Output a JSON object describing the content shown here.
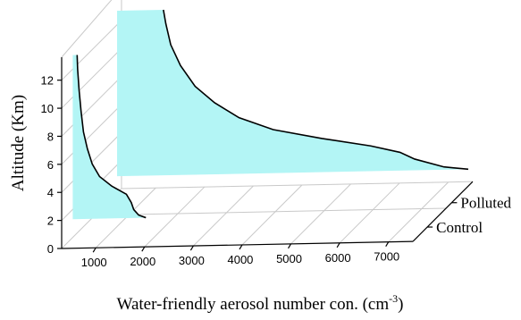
{
  "chart_data": {
    "type": "area",
    "title": "",
    "xlabel": "Water-friendly aerosol number con. (cm",
    "xlabel_exponent": "-3",
    "xlabel_suffix": ")",
    "ylabel": "Altitude (Km)",
    "zlabel": "",
    "xlim": [
      300,
      7500
    ],
    "ylim": [
      0,
      13
    ],
    "x_ticks": [
      1000,
      2000,
      3000,
      4000,
      5000,
      6000,
      7000
    ],
    "y_ticks": [
      0,
      2,
      4,
      6,
      8,
      10,
      12
    ],
    "grid": true,
    "fill_color": "#b3f5f5",
    "line_color": "#000000",
    "series": [
      {
        "name": "Control",
        "points": [
          [
            1800,
            1.3
          ],
          [
            1650,
            1.5
          ],
          [
            1550,
            1.9
          ],
          [
            1500,
            2.4
          ],
          [
            1400,
            3.0
          ],
          [
            1100,
            3.6
          ],
          [
            850,
            4.3
          ],
          [
            700,
            5.2
          ],
          [
            600,
            6.3
          ],
          [
            520,
            7.5
          ],
          [
            470,
            9.0
          ],
          [
            430,
            10.5
          ],
          [
            400,
            12.0
          ],
          [
            390,
            13.0
          ]
        ]
      },
      {
        "name": "Polluted",
        "points": [
          [
            7500,
            1.2
          ],
          [
            7000,
            1.4
          ],
          [
            6400,
            2.0
          ],
          [
            6100,
            2.5
          ],
          [
            5500,
            3.0
          ],
          [
            4500,
            3.6
          ],
          [
            3500,
            4.3
          ],
          [
            2800,
            5.2
          ],
          [
            2300,
            6.3
          ],
          [
            1900,
            7.5
          ],
          [
            1600,
            9.0
          ],
          [
            1400,
            10.5
          ],
          [
            1300,
            12.0
          ],
          [
            1250,
            13.0
          ]
        ]
      }
    ]
  }
}
